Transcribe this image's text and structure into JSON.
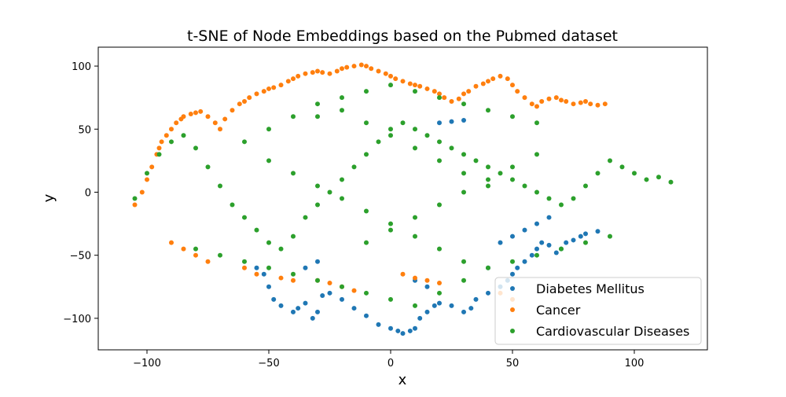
{
  "chart_data": {
    "type": "scatter",
    "title": "t-SNE of Node Embeddings based on the Pubmed dataset",
    "xlabel": "x",
    "ylabel": "y",
    "xlim": [
      -120,
      130
    ],
    "ylim": [
      -125,
      115
    ],
    "xticks": [
      -100,
      -50,
      0,
      50,
      100
    ],
    "yticks": [
      -100,
      -50,
      0,
      50,
      100
    ],
    "xtick_labels": [
      "−100",
      "−50",
      "0",
      "50",
      "100"
    ],
    "ytick_labels": [
      "−100",
      "−50",
      "0",
      "50",
      "100"
    ],
    "grid": false,
    "legend_position": "lower-right",
    "series": [
      {
        "name": "Diabetes Mellitus",
        "color": "#1f77b4",
        "x": [
          -50,
          -48,
          -45,
          -40,
          -38,
          -35,
          -32,
          -30,
          -28,
          -25,
          -20,
          -15,
          -10,
          -5,
          0,
          3,
          5,
          8,
          10,
          12,
          15,
          18,
          20,
          25,
          30,
          33,
          35,
          40,
          45,
          48,
          50,
          52,
          55,
          58,
          60,
          62,
          65,
          68,
          70,
          72,
          75,
          78,
          80,
          85,
          20,
          25,
          30,
          -55,
          -52,
          -35,
          -30,
          10,
          15,
          40,
          45,
          50,
          55,
          60,
          65
        ],
        "y": [
          -75,
          -85,
          -90,
          -95,
          -92,
          -88,
          -100,
          -95,
          -82,
          -80,
          -85,
          -92,
          -98,
          -105,
          -108,
          -110,
          -112,
          -110,
          -108,
          -100,
          -95,
          -90,
          -88,
          -90,
          -95,
          -92,
          -85,
          -80,
          -75,
          -70,
          -65,
          -60,
          -55,
          -50,
          -45,
          -40,
          -42,
          -48,
          -45,
          -40,
          -38,
          -35,
          -33,
          -31,
          55,
          56,
          57,
          -60,
          -65,
          -60,
          -55,
          -70,
          -75,
          -60,
          -40,
          -35,
          -30,
          -25,
          -20
        ]
      },
      {
        "name": "Cancer",
        "color": "#ff7f0e",
        "x": [
          -105,
          -102,
          -100,
          -98,
          -96,
          -95,
          -94,
          -92,
          -90,
          -88,
          -86,
          -85,
          -82,
          -80,
          -78,
          -75,
          -72,
          -70,
          -68,
          -65,
          -62,
          -60,
          -58,
          -55,
          -52,
          -50,
          -48,
          -45,
          -42,
          -40,
          -38,
          -35,
          -32,
          -30,
          -28,
          -25,
          -22,
          -20,
          -18,
          -15,
          -12,
          -10,
          -8,
          -5,
          -2,
          0,
          2,
          5,
          8,
          10,
          12,
          15,
          18,
          20,
          22,
          25,
          28,
          30,
          32,
          35,
          38,
          40,
          42,
          45,
          48,
          50,
          52,
          55,
          58,
          60,
          62,
          65,
          68,
          70,
          72,
          75,
          78,
          80,
          82,
          85,
          88,
          -90,
          -85,
          -80,
          -75,
          -30,
          -25,
          -20,
          -15,
          5,
          10,
          15,
          20,
          45,
          50,
          -60,
          -55,
          -45,
          -40
        ],
        "y": [
          -10,
          0,
          10,
          20,
          30,
          35,
          40,
          45,
          50,
          55,
          58,
          60,
          62,
          63,
          64,
          60,
          55,
          50,
          58,
          65,
          70,
          72,
          75,
          78,
          80,
          82,
          83,
          85,
          88,
          90,
          92,
          94,
          95,
          96,
          95,
          94,
          96,
          98,
          99,
          100,
          101,
          100,
          98,
          96,
          94,
          92,
          90,
          88,
          86,
          85,
          84,
          82,
          80,
          78,
          75,
          72,
          74,
          78,
          80,
          84,
          86,
          88,
          90,
          92,
          90,
          85,
          80,
          75,
          70,
          68,
          72,
          74,
          75,
          73,
          72,
          70,
          71,
          72,
          70,
          69,
          70,
          -40,
          -45,
          -50,
          -55,
          -70,
          -72,
          -75,
          -78,
          -65,
          -68,
          -70,
          -72,
          -80,
          -85,
          -60,
          -65,
          -68,
          -70
        ]
      },
      {
        "name": "Cardiovascular Diseases",
        "color": "#2ca02c",
        "x": [
          -105,
          -100,
          -95,
          -90,
          -85,
          -80,
          -75,
          -70,
          -65,
          -60,
          -55,
          -50,
          -45,
          -40,
          -35,
          -30,
          -25,
          -20,
          -15,
          -10,
          -5,
          0,
          5,
          10,
          15,
          20,
          25,
          30,
          35,
          40,
          45,
          50,
          55,
          60,
          65,
          70,
          75,
          80,
          85,
          90,
          95,
          100,
          105,
          110,
          115,
          -80,
          -70,
          -60,
          -50,
          -40,
          -30,
          -20,
          -10,
          0,
          10,
          20,
          30,
          40,
          50,
          60,
          70,
          80,
          90,
          -60,
          -50,
          -40,
          -30,
          -20,
          -10,
          0,
          10,
          20,
          30,
          40,
          50,
          60,
          -50,
          -40,
          -30,
          -20,
          -10,
          0,
          10,
          20,
          30,
          -30,
          -20,
          -10,
          0,
          10,
          20,
          30,
          40,
          -10,
          0,
          10,
          20,
          30,
          40,
          50,
          60
        ],
        "y": [
          -5,
          15,
          30,
          40,
          45,
          35,
          20,
          5,
          -10,
          -20,
          -30,
          -40,
          -45,
          -35,
          -20,
          -10,
          0,
          10,
          20,
          30,
          40,
          50,
          55,
          50,
          45,
          40,
          35,
          30,
          25,
          20,
          15,
          10,
          5,
          0,
          -5,
          -10,
          -5,
          5,
          15,
          25,
          20,
          15,
          10,
          12,
          8,
          -45,
          -50,
          -55,
          -60,
          -65,
          -70,
          -75,
          -80,
          -85,
          -90,
          -80,
          -70,
          -60,
          -55,
          -50,
          -45,
          -40,
          -35,
          40,
          50,
          60,
          70,
          75,
          80,
          85,
          80,
          75,
          70,
          65,
          60,
          55,
          25,
          15,
          5,
          -5,
          -15,
          -25,
          -35,
          -45,
          -55,
          60,
          65,
          55,
          45,
          35,
          25,
          15,
          5,
          -40,
          -30,
          -20,
          -10,
          0,
          10,
          20,
          30
        ]
      }
    ]
  }
}
